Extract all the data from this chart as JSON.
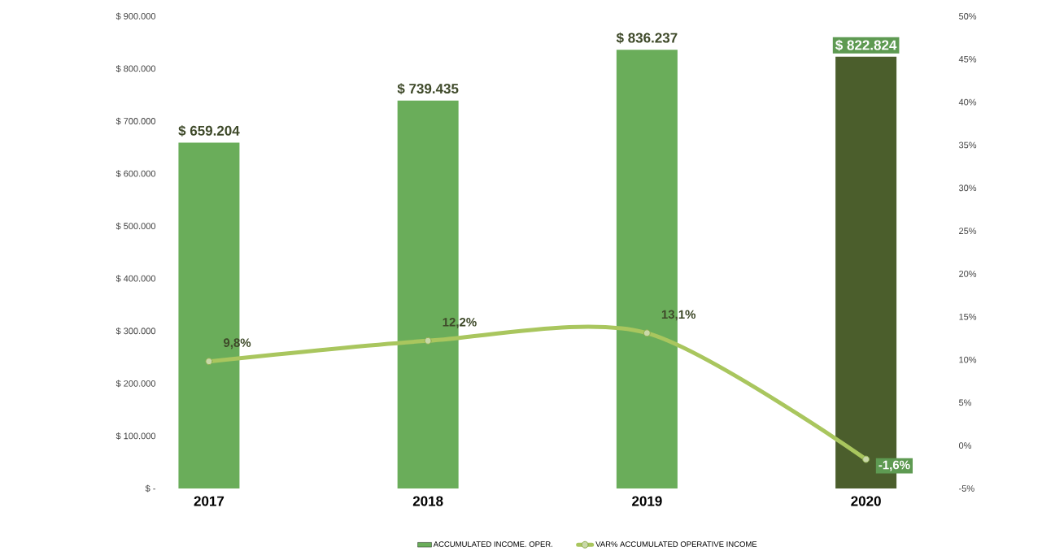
{
  "chart_data": {
    "type": "bar",
    "categories": [
      "2017",
      "2018",
      "2019",
      "2020"
    ],
    "series": [
      {
        "name": "ACCUMULATED INCOME. OPER.",
        "color": "#5e9a52",
        "colors": [
          "#6aad5a",
          "#6aad5a",
          "#6aad5a",
          "#4b5e2c"
        ],
        "values": [
          659204,
          739435,
          836237,
          822824
        ],
        "value_labels": [
          "$ 659.204",
          "$ 739.435",
          "$ 836.237",
          "$ 822.824"
        ]
      },
      {
        "name": "VAR% ACCUMULATED OPERATIVE INCOME",
        "type": "line",
        "axis": "y2",
        "color": "#a9c65e",
        "marker": "circle",
        "values": [
          9.8,
          12.2,
          13.1,
          -1.6
        ],
        "value_labels": [
          "9,8%",
          "12,2%",
          "13,1%",
          "-1,6%"
        ]
      }
    ],
    "ylim": [
      0,
      900000
    ],
    "yticks": [
      {
        "value": 0,
        "label": "$ -"
      },
      {
        "value": 100000,
        "label": "$ 100.000"
      },
      {
        "value": 200000,
        "label": "$ 200.000"
      },
      {
        "value": 300000,
        "label": "$ 300.000"
      },
      {
        "value": 400000,
        "label": "$ 400.000"
      },
      {
        "value": 500000,
        "label": "$ 500.000"
      },
      {
        "value": 600000,
        "label": "$ 600.000"
      },
      {
        "value": 700000,
        "label": "$ 700.000"
      },
      {
        "value": 800000,
        "label": "$ 800.000"
      },
      {
        "value": 900000,
        "label": "$ 900.000"
      }
    ],
    "y2lim": [
      -5,
      50
    ],
    "y2ticks": [
      {
        "value": -5,
        "label": "-5%"
      },
      {
        "value": 0,
        "label": "0%"
      },
      {
        "value": 5,
        "label": "5%"
      },
      {
        "value": 10,
        "label": "10%"
      },
      {
        "value": 15,
        "label": "15%"
      },
      {
        "value": 20,
        "label": "20%"
      },
      {
        "value": 25,
        "label": "25%"
      },
      {
        "value": 30,
        "label": "30%"
      },
      {
        "value": 35,
        "label": "35%"
      },
      {
        "value": 40,
        "label": "40%"
      },
      {
        "value": 45,
        "label": "45%"
      },
      {
        "value": 50,
        "label": "50%"
      }
    ],
    "legend": "bottom",
    "grid": false
  }
}
